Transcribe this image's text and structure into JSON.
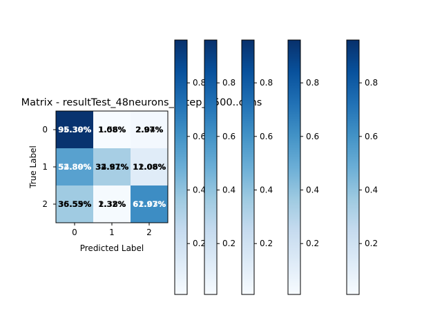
{
  "chart_data": {
    "type": "heatmap",
    "title": "Matrix - resultTest_48neurons_..step_..500..ochs",
    "xlabel": "Predicted Label",
    "ylabel": "True Label",
    "x_ticks": [
      "0",
      "1",
      "2"
    ],
    "y_ticks": [
      "0",
      "1",
      "2"
    ],
    "colormap": "Blues",
    "cell_values": [
      [
        0.95,
        0.01,
        0.03
      ],
      [
        0.54,
        0.34,
        0.12
      ],
      [
        0.36,
        0.02,
        0.62
      ]
    ],
    "cell_labels": [
      [
        "95.30%",
        "1.08%",
        "2.97%"
      ],
      [
        "52.80%",
        "32.97%",
        "11.08%"
      ],
      [
        "36.55%",
        "1.32%",
        "61.97%"
      ]
    ],
    "overlay_labels": [
      [
        "96.39%",
        "1.56%",
        "2.04%"
      ],
      [
        "54.39%",
        "34.81%",
        "12.06%"
      ],
      [
        "35.59%",
        "2.38%",
        "62.03%"
      ]
    ],
    "colorbars": [
      {
        "ticks": [
          "0.2",
          "0.4",
          "0.6",
          "0.8"
        ]
      },
      {
        "ticks": [
          "0.2",
          "0.4",
          "0.6",
          "0.8"
        ]
      },
      {
        "ticks": [
          "0.2",
          "0.4",
          "0.6",
          "0.8"
        ]
      },
      {
        "ticks": [
          "0.2",
          "0.4",
          "0.6",
          "0.8"
        ]
      },
      {
        "ticks": [
          "0.2",
          "0.4",
          "0.6",
          "0.8"
        ]
      }
    ],
    "colorbar_range": [
      0.01,
      0.96
    ]
  }
}
